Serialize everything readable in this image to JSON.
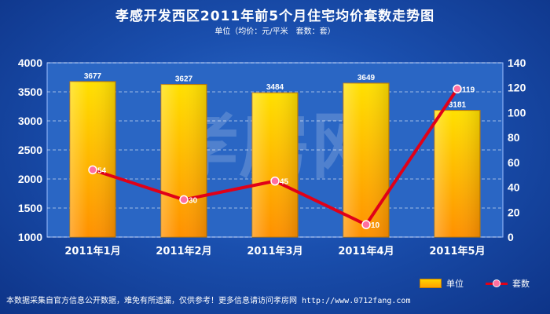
{
  "title": "孝感开发西区2011年前5个月住宅均价套数走势图",
  "subtitle": "单位（均价：元/平米　套数：套）",
  "watermark": "孝房网",
  "footer": {
    "text": "本数据采集自官方信息公开数据，难免有所遗漏，仅供参考！更多信息请访问孝房网",
    "url": "http://www.0712fang.com"
  },
  "legend": {
    "bar_label": "单位",
    "line_label": "套数"
  },
  "colors": {
    "bar_top": "#ffd400",
    "bar_bottom": "#ff9a00",
    "line": "#e00018",
    "marker": "#ff6fa0",
    "plot_bg": "#2a66c4"
  },
  "chart_data": {
    "type": "bar",
    "categories": [
      "2011年1月",
      "2011年2月",
      "2011年3月",
      "2011年4月",
      "2011年5月"
    ],
    "series": [
      {
        "name": "单位",
        "type": "bar",
        "axis": "left",
        "values": [
          3677,
          3627,
          3484,
          3649,
          3181
        ]
      },
      {
        "name": "套数",
        "type": "line",
        "axis": "right",
        "values": [
          54,
          30,
          45,
          10,
          119
        ]
      }
    ],
    "y_left": {
      "min": 1000,
      "max": 4000,
      "ticks": [
        1000,
        1500,
        2000,
        2500,
        3000,
        3500,
        4000
      ]
    },
    "y_right": {
      "min": 0,
      "max": 140,
      "ticks": [
        0,
        20,
        40,
        60,
        80,
        100,
        120,
        140
      ]
    },
    "grid": true,
    "legend_position": "bottom-right"
  }
}
